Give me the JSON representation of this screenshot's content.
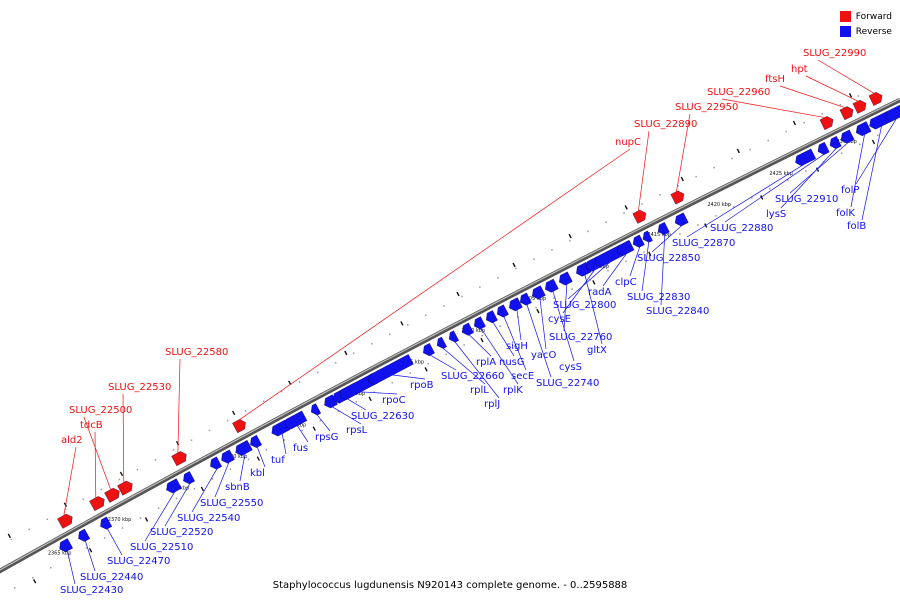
{
  "title": "Staphylococcus lugdunensis N920143 complete genome. - 0..2595888",
  "legend": {
    "forward_label": "Forward",
    "reverse_label": "Reverse",
    "forward_color": "#ee1111",
    "reverse_color": "#1111ee"
  },
  "axis": {
    "unit": "kbp",
    "ticks": [
      2365,
      2370,
      2375,
      2380,
      2385,
      2390,
      2395,
      2400,
      2405,
      2410,
      2415,
      2420,
      2425,
      2430
    ]
  },
  "forward_genes": [
    "ald2",
    "tdcB",
    "SLUG_22500",
    "SLUG_22530",
    "SLUG_22580",
    "nupC",
    "SLUG_22890",
    "SLUG_22950",
    "SLUG_22960",
    "ftsH",
    "hpt",
    "SLUG_22990"
  ],
  "reverse_genes": [
    "SLUG_22430",
    "SLUG_22440",
    "SLUG_22470",
    "SLUG_22510",
    "SLUG_22520",
    "SLUG_22540",
    "SLUG_22550",
    "sbnB",
    "kbl",
    "tuf",
    "fus",
    "rpsG",
    "rpsL",
    "SLUG_22630",
    "rpoC",
    "rpoB",
    "SLUG_22660",
    "rplL",
    "rplJ",
    "rplA",
    "rplK",
    "nusG",
    "secE",
    "sigH",
    "SLUG_22740",
    "yacO",
    "cysS",
    "SLUG_22760",
    "gltX",
    "cysE",
    "SLUG_22800",
    "radA",
    "clpC",
    "SLUG_22830",
    "SLUG_22840",
    "SLUG_22850",
    "SLUG_22870",
    "SLUG_22880",
    "lysS",
    "SLUG_22910",
    "folK",
    "folB",
    "folP"
  ]
}
